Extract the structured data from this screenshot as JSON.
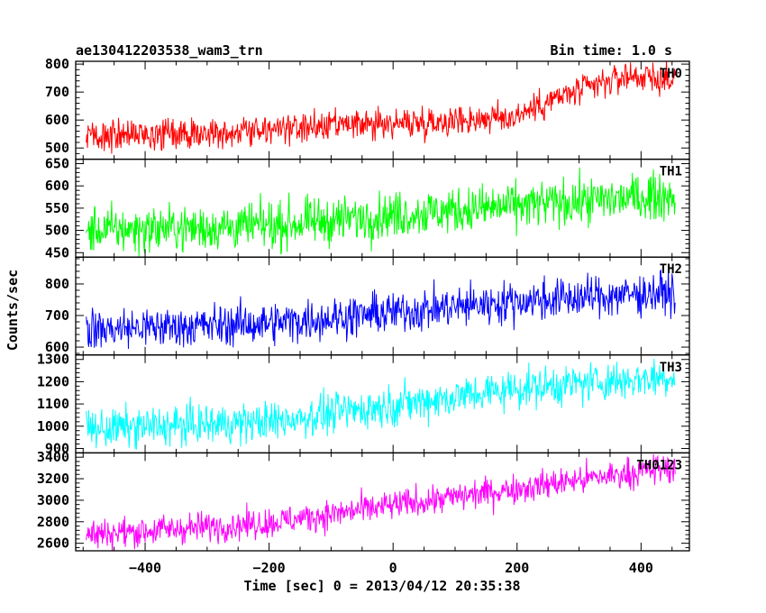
{
  "chart_data": {
    "type": "line",
    "title": "ae130412203538_wam3_trn",
    "bin_time_label": "Bin time: 1.0 s",
    "xlabel": "Time [sec] 0 = 2013/04/12 20:35:38",
    "ylabel": "Counts/sec",
    "xlim": [
      -512,
      478
    ],
    "x_ticks": [
      -400,
      -200,
      0,
      200,
      400
    ],
    "x_tick_labels": [
      "−400",
      "−200",
      "0",
      "200",
      "400"
    ],
    "x_range_data": [
      -495,
      455
    ],
    "panels": [
      {
        "name": "TH0",
        "color": "#ff0000",
        "ylim": [
          460,
          810
        ],
        "y_ticks": [
          500,
          600,
          700,
          800
        ],
        "trend": [
          [
            -495,
            540
          ],
          [
            -300,
            555
          ],
          [
            -100,
            575
          ],
          [
            100,
            600
          ],
          [
            190,
            610
          ],
          [
            260,
            675
          ],
          [
            380,
            760
          ],
          [
            455,
            740
          ]
        ],
        "noise": 28
      },
      {
        "name": "TH1",
        "color": "#00ff00",
        "ylim": [
          440,
          660
        ],
        "y_ticks": [
          450,
          500,
          550,
          600,
          650
        ],
        "trend": [
          [
            -495,
            500
          ],
          [
            -200,
            510
          ],
          [
            0,
            535
          ],
          [
            200,
            555
          ],
          [
            455,
            580
          ]
        ],
        "noise": 26
      },
      {
        "name": "TH2",
        "color": "#0000ff",
        "ylim": [
          575,
          885
        ],
        "y_ticks": [
          600,
          700,
          800
        ],
        "trend": [
          [
            -495,
            655
          ],
          [
            -200,
            675
          ],
          [
            0,
            710
          ],
          [
            200,
            745
          ],
          [
            455,
            775
          ]
        ],
        "noise": 33
      },
      {
        "name": "TH3",
        "color": "#00ffff",
        "ylim": [
          880,
          1320
        ],
        "y_ticks": [
          900,
          1000,
          1100,
          1200,
          1300
        ],
        "trend": [
          [
            -495,
            985
          ],
          [
            -200,
            1020
          ],
          [
            0,
            1095
          ],
          [
            200,
            1170
          ],
          [
            455,
            1225
          ]
        ],
        "noise": 45
      },
      {
        "name": "TH0123",
        "color": "#ff00ff",
        "ylim": [
          2530,
          3440
        ],
        "y_ticks": [
          2600,
          2800,
          3000,
          3200,
          3400
        ],
        "trend": [
          [
            -495,
            2680
          ],
          [
            -200,
            2790
          ],
          [
            0,
            2950
          ],
          [
            200,
            3110
          ],
          [
            455,
            3310
          ]
        ],
        "noise": 70
      }
    ]
  }
}
